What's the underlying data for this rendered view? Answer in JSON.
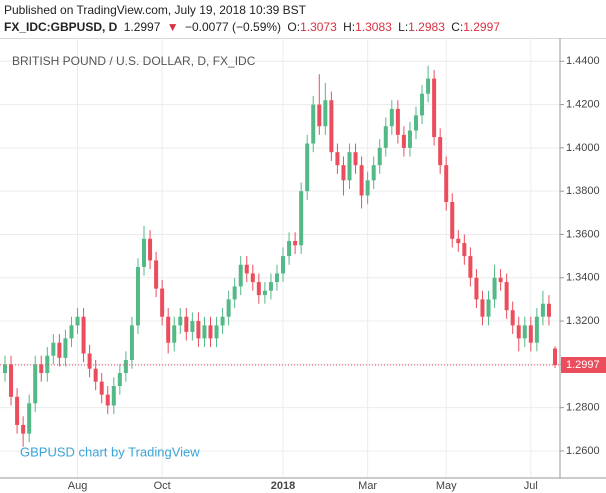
{
  "header": {
    "published": "Published on TradingView.com, July 19, 2018 10:39 BST",
    "symbol": "FX_IDC:GBPUSD, D",
    "price": "1.2997",
    "arrow": "▼",
    "change": "−0.0077 (−0.59%)",
    "o_label": "O:",
    "o": "1.3073",
    "h_label": "H:",
    "h": "1.3083",
    "l_label": "L:",
    "l": "1.2983",
    "c_label": "C:",
    "c": "1.2997"
  },
  "chart_data": {
    "type": "candlestick",
    "title": "BRITISH POUND / U.S. DOLLAR, D, FX_IDC",
    "annotation": "GBPUSD chart by TradingView",
    "up_color": "#53b987",
    "down_color": "#eb4d5c",
    "grid": true,
    "ylim": [
      1.2475,
      1.4489
    ],
    "yticks": [
      {
        "value": 1.26,
        "label": "1.2600"
      },
      {
        "value": 1.28,
        "label": "1.2800"
      },
      {
        "value": 1.3,
        "label": "1.3000"
      },
      {
        "value": 1.32,
        "label": "1.3200"
      },
      {
        "value": 1.34,
        "label": "1.3400"
      },
      {
        "value": 1.36,
        "label": "1.3600"
      },
      {
        "value": 1.38,
        "label": "1.3800"
      },
      {
        "value": 1.4,
        "label": "1.4000"
      },
      {
        "value": 1.42,
        "label": "1.4200"
      },
      {
        "value": 1.44,
        "label": "1.4400"
      }
    ],
    "categories": [
      null,
      null,
      null,
      null,
      null,
      null,
      null,
      null,
      null,
      null,
      null,
      null,
      "Aug",
      null,
      null,
      null,
      null,
      null,
      null,
      null,
      null,
      null,
      null,
      null,
      null,
      null,
      "Oct",
      null,
      null,
      null,
      null,
      null,
      null,
      null,
      null,
      null,
      null,
      null,
      null,
      null,
      null,
      null,
      null,
      null,
      null,
      null,
      "2018",
      null,
      null,
      null,
      null,
      null,
      null,
      null,
      null,
      null,
      null,
      null,
      null,
      null,
      "Mar",
      null,
      null,
      null,
      null,
      null,
      null,
      null,
      null,
      null,
      null,
      null,
      null,
      "May",
      null,
      null,
      null,
      null,
      null,
      null,
      null,
      null,
      null,
      null,
      null,
      null,
      null,
      "Jul",
      null,
      null,
      null,
      null
    ],
    "open": [
      1.296,
      1.3,
      1.285,
      1.272,
      1.268,
      1.282,
      1.3,
      1.296,
      1.304,
      1.31,
      1.303,
      1.312,
      1.318,
      1.322,
      1.305,
      1.298,
      1.292,
      1.286,
      1.281,
      1.29,
      1.296,
      1.302,
      1.318,
      1.345,
      1.358,
      1.348,
      1.335,
      1.322,
      1.31,
      1.318,
      1.322,
      1.315,
      1.32,
      1.312,
      1.318,
      1.312,
      1.318,
      1.322,
      1.33,
      1.336,
      1.346,
      1.342,
      1.338,
      1.332,
      1.334,
      1.338,
      1.342,
      1.35,
      1.357,
      1.355,
      1.38,
      1.402,
      1.42,
      1.41,
      1.422,
      1.398,
      1.392,
      1.385,
      1.398,
      1.392,
      1.378,
      1.385,
      1.392,
      1.4,
      1.41,
      1.418,
      1.406,
      1.4,
      1.408,
      1.415,
      1.425,
      1.432,
      1.405,
      1.392,
      1.375,
      1.358,
      1.356,
      1.35,
      1.34,
      1.33,
      1.322,
      1.33,
      1.34,
      1.338,
      1.325,
      1.318,
      1.312,
      1.318,
      1.31,
      1.322,
      1.328,
      1.3073
    ],
    "high": [
      1.304,
      1.304,
      1.289,
      1.276,
      1.286,
      1.304,
      1.304,
      1.308,
      1.314,
      1.314,
      1.316,
      1.322,
      1.326,
      1.326,
      1.309,
      1.302,
      1.296,
      1.29,
      1.294,
      1.3,
      1.306,
      1.322,
      1.349,
      1.364,
      1.362,
      1.352,
      1.339,
      1.326,
      1.322,
      1.326,
      1.326,
      1.324,
      1.324,
      1.322,
      1.322,
      1.322,
      1.326,
      1.334,
      1.34,
      1.35,
      1.35,
      1.346,
      1.342,
      1.338,
      1.342,
      1.346,
      1.354,
      1.361,
      1.361,
      1.384,
      1.406,
      1.424,
      1.434,
      1.43,
      1.426,
      1.402,
      1.396,
      1.402,
      1.402,
      1.396,
      1.389,
      1.396,
      1.404,
      1.414,
      1.422,
      1.422,
      1.41,
      1.412,
      1.419,
      1.429,
      1.438,
      1.436,
      1.409,
      1.396,
      1.379,
      1.362,
      1.36,
      1.354,
      1.344,
      1.334,
      1.334,
      1.346,
      1.344,
      1.342,
      1.329,
      1.322,
      1.322,
      1.322,
      1.326,
      1.334,
      1.332,
      1.3083
    ],
    "low": [
      1.292,
      1.281,
      1.268,
      1.262,
      1.264,
      1.278,
      1.292,
      1.292,
      1.3,
      1.299,
      1.299,
      1.308,
      1.314,
      1.301,
      1.294,
      1.288,
      1.282,
      1.277,
      1.277,
      1.286,
      1.292,
      1.298,
      1.314,
      1.341,
      1.344,
      1.331,
      1.318,
      1.305,
      1.306,
      1.314,
      1.311,
      1.311,
      1.308,
      1.308,
      1.308,
      1.308,
      1.314,
      1.318,
      1.326,
      1.332,
      1.338,
      1.334,
      1.328,
      1.328,
      1.33,
      1.334,
      1.338,
      1.346,
      1.351,
      1.351,
      1.376,
      1.398,
      1.406,
      1.406,
      1.394,
      1.388,
      1.378,
      1.381,
      1.388,
      1.372,
      1.374,
      1.381,
      1.388,
      1.396,
      1.406,
      1.402,
      1.396,
      1.396,
      1.404,
      1.411,
      1.421,
      1.401,
      1.388,
      1.371,
      1.354,
      1.352,
      1.346,
      1.336,
      1.326,
      1.318,
      1.318,
      1.326,
      1.334,
      1.321,
      1.314,
      1.306,
      1.308,
      1.306,
      1.306,
      1.318,
      1.318,
      1.2983
    ],
    "close": [
      1.3,
      1.285,
      1.272,
      1.268,
      1.282,
      1.3,
      1.296,
      1.304,
      1.31,
      1.303,
      1.312,
      1.318,
      1.322,
      1.305,
      1.298,
      1.292,
      1.286,
      1.281,
      1.29,
      1.296,
      1.302,
      1.318,
      1.345,
      1.358,
      1.348,
      1.335,
      1.322,
      1.31,
      1.318,
      1.322,
      1.315,
      1.32,
      1.312,
      1.318,
      1.312,
      1.318,
      1.322,
      1.33,
      1.336,
      1.346,
      1.342,
      1.338,
      1.332,
      1.334,
      1.338,
      1.342,
      1.35,
      1.357,
      1.355,
      1.38,
      1.402,
      1.42,
      1.41,
      1.422,
      1.398,
      1.392,
      1.385,
      1.398,
      1.392,
      1.378,
      1.385,
      1.392,
      1.4,
      1.41,
      1.418,
      1.406,
      1.4,
      1.408,
      1.415,
      1.425,
      1.432,
      1.405,
      1.392,
      1.375,
      1.358,
      1.356,
      1.35,
      1.34,
      1.33,
      1.322,
      1.33,
      1.34,
      1.338,
      1.325,
      1.318,
      1.312,
      1.318,
      1.31,
      1.322,
      1.328,
      1.322,
      1.2997
    ]
  }
}
